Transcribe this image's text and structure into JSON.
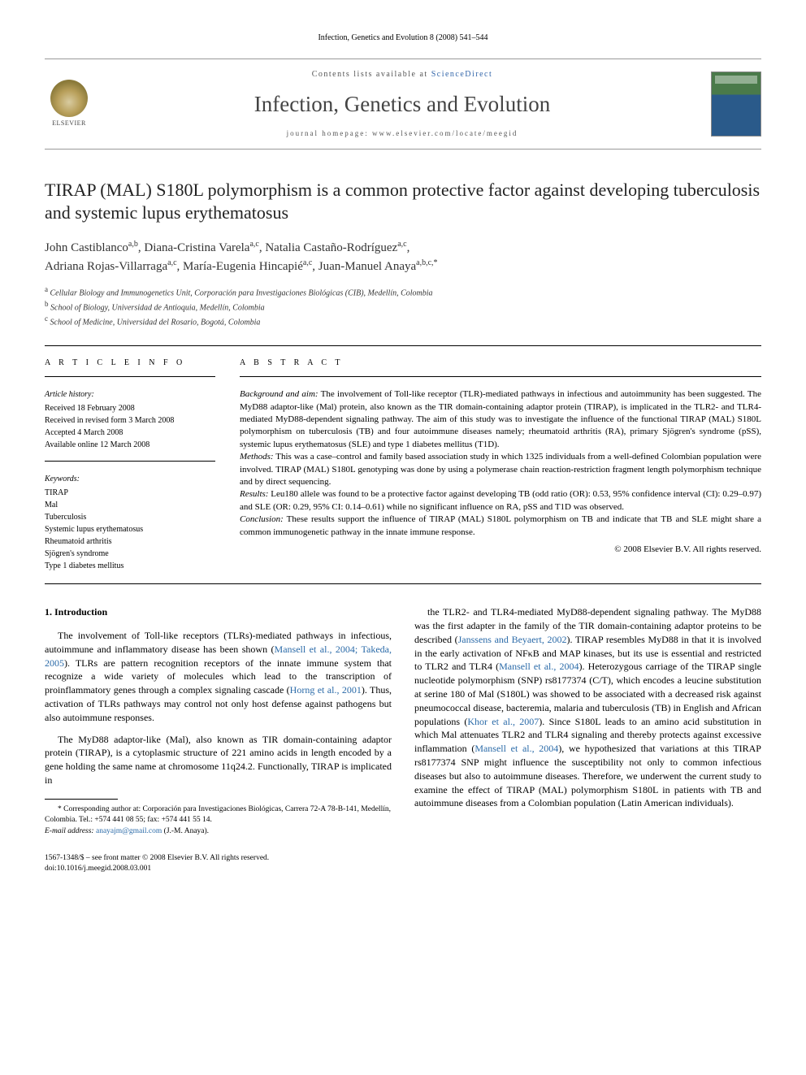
{
  "runningHeader": "Infection, Genetics and Evolution 8 (2008) 541–544",
  "masthead": {
    "contentsPrefix": "Contents lists available at ",
    "contentsLink": "ScienceDirect",
    "journalName": "Infection, Genetics and Evolution",
    "homepagePrefix": "journal homepage: ",
    "homepageUrl": "www.elsevier.com/locate/meegid",
    "publisherLabel": "ELSEVIER"
  },
  "article": {
    "title": "TIRAP (MAL) S180L polymorphism is a common protective factor against developing tuberculosis and systemic lupus erythematosus",
    "authors": [
      {
        "name": "John Castiblanco",
        "affMarks": "a,b"
      },
      {
        "name": "Diana-Cristina Varela",
        "affMarks": "a,c"
      },
      {
        "name": "Natalia Castaño-Rodríguez",
        "affMarks": "a,c"
      },
      {
        "name": "Adriana Rojas-Villarraga",
        "affMarks": "a,c"
      },
      {
        "name": "María-Eugenia Hincapié",
        "affMarks": "a,c"
      },
      {
        "name": "Juan-Manuel Anaya",
        "affMarks": "a,b,c,*"
      }
    ],
    "affiliations": [
      {
        "mark": "a",
        "text": "Cellular Biology and Immunogenetics Unit, Corporación para Investigaciones Biológicas (CIB), Medellín, Colombia"
      },
      {
        "mark": "b",
        "text": "School of Biology, Universidad de Antioquia, Medellín, Colombia"
      },
      {
        "mark": "c",
        "text": "School of Medicine, Universidad del Rosario, Bogotá, Colombia"
      }
    ]
  },
  "articleInfo": {
    "heading": "A R T I C L E  I N F O",
    "historyLabel": "Article history:",
    "history": [
      "Received 18 February 2008",
      "Received in revised form 3 March 2008",
      "Accepted 4 March 2008",
      "Available online 12 March 2008"
    ],
    "keywordsLabel": "Keywords:",
    "keywords": [
      "TIRAP",
      "Mal",
      "Tuberculosis",
      "Systemic lupus erythematosus",
      "Rheumatoid arthritis",
      "Sjögren's syndrome",
      "Type 1 diabetes mellitus"
    ]
  },
  "abstract": {
    "heading": "A B S T R A C T",
    "sections": [
      {
        "label": "Background and aim:",
        "text": " The involvement of Toll-like receptor (TLR)-mediated pathways in infectious and autoimmunity has been suggested. The MyD88 adaptor-like (Mal) protein, also known as the TIR domain-containing adaptor protein (TIRAP), is implicated in the TLR2- and TLR4-mediated MyD88-dependent signaling pathway. The aim of this study was to investigate the influence of the functional TIRAP (MAL) S180L polymorphism on tuberculosis (TB) and four autoimmune diseases namely; rheumatoid arthritis (RA), primary Sjögren's syndrome (pSS), systemic lupus erythematosus (SLE) and type 1 diabetes mellitus (T1D)."
      },
      {
        "label": "Methods:",
        "text": " This was a case–control and family based association study in which 1325 individuals from a well-defined Colombian population were involved. TIRAP (MAL) S180L genotyping was done by using a polymerase chain reaction-restriction fragment length polymorphism technique and by direct sequencing."
      },
      {
        "label": "Results:",
        "text": " Leu180 allele was found to be a protective factor against developing TB (odd ratio (OR): 0.53, 95% confidence interval (CI): 0.29–0.97) and SLE (OR: 0.29, 95% CI: 0.14–0.61) while no significant influence on RA, pSS and T1D was observed."
      },
      {
        "label": "Conclusion:",
        "text": " These results support the influence of TIRAP (MAL) S180L polymorphism on TB and indicate that TB and SLE might share a common immunogenetic pathway in the innate immune response."
      }
    ],
    "copyright": "© 2008 Elsevier B.V. All rights reserved."
  },
  "body": {
    "section1Heading": "1. Introduction",
    "para1a": "The involvement of Toll-like receptors (TLRs)-mediated pathways in infectious, autoimmune and inflammatory disease has been shown (",
    "cite1": "Mansell et al., 2004; Takeda, 2005",
    "para1b": "). TLRs are pattern recognition receptors of the innate immune system that recognize a wide variety of molecules which lead to the transcription of proinflammatory genes through a complex signaling cascade (",
    "cite2": "Horng et al., 2001",
    "para1c": "). Thus, activation of TLRs pathways may control not only host defense against pathogens but also autoimmune responses.",
    "para2": "The MyD88 adaptor-like (Mal), also known as TIR domain-containing adaptor protein (TIRAP), is a cytoplasmic structure of 221 amino acids in length encoded by a gene holding the same name at chromosome 11q24.2. Functionally, TIRAP is implicated in",
    "para3a": "the TLR2- and TLR4-mediated MyD88-dependent signaling pathway. The MyD88 was the first adapter in the family of the TIR domain-containing adaptor proteins to be described (",
    "cite3": "Janssens and Beyaert, 2002",
    "para3b": "). TIRAP resembles MyD88 in that it is involved in the early activation of NFκB and MAP kinases, but its use is essential and restricted to TLR2 and TLR4 (",
    "cite4": "Mansell et al., 2004",
    "para3c": "). Heterozygous carriage of the TIRAP single nucleotide polymorphism (SNP) rs8177374 (C/T), which encodes a leucine substitution at serine 180 of Mal (S180L) was showed to be associated with a decreased risk against pneumococcal disease, bacteremia, malaria and tuberculosis (TB) in English and African populations (",
    "cite5": "Khor et al., 2007",
    "para3d": "). Since S180L leads to an amino acid substitution in which Mal attenuates TLR2 and TLR4 signaling and thereby protects against excessive inflammation (",
    "cite6": "Mansell et al., 2004",
    "para3e": "), we hypothesized that variations at this TIRAP rs8177374 SNP might influence the susceptibility not only to common infectious diseases but also to autoimmune diseases. Therefore, we underwent the current study to examine the effect of TIRAP (MAL) polymorphism S180L in patients with TB and autoimmune diseases from a Colombian population (Latin American individuals)."
  },
  "footnote": {
    "corresponding": "* Corresponding author at: Corporación para Investigaciones Biológicas, Carrera 72-A 78-B-141, Medellín, Colombia. Tel.: +574 441 08 55; fax: +574 441 55 14.",
    "emailLabel": "E-mail address: ",
    "email": "anayajm@gmail.com",
    "emailSuffix": " (J.-M. Anaya)."
  },
  "pageFooter": {
    "left1": "1567-1348/$ – see front matter © 2008 Elsevier B.V. All rights reserved.",
    "left2": "doi:10.1016/j.meegid.2008.03.001"
  },
  "colors": {
    "citeLink": "#2a6aa8",
    "text": "#000000",
    "background": "#ffffff"
  }
}
